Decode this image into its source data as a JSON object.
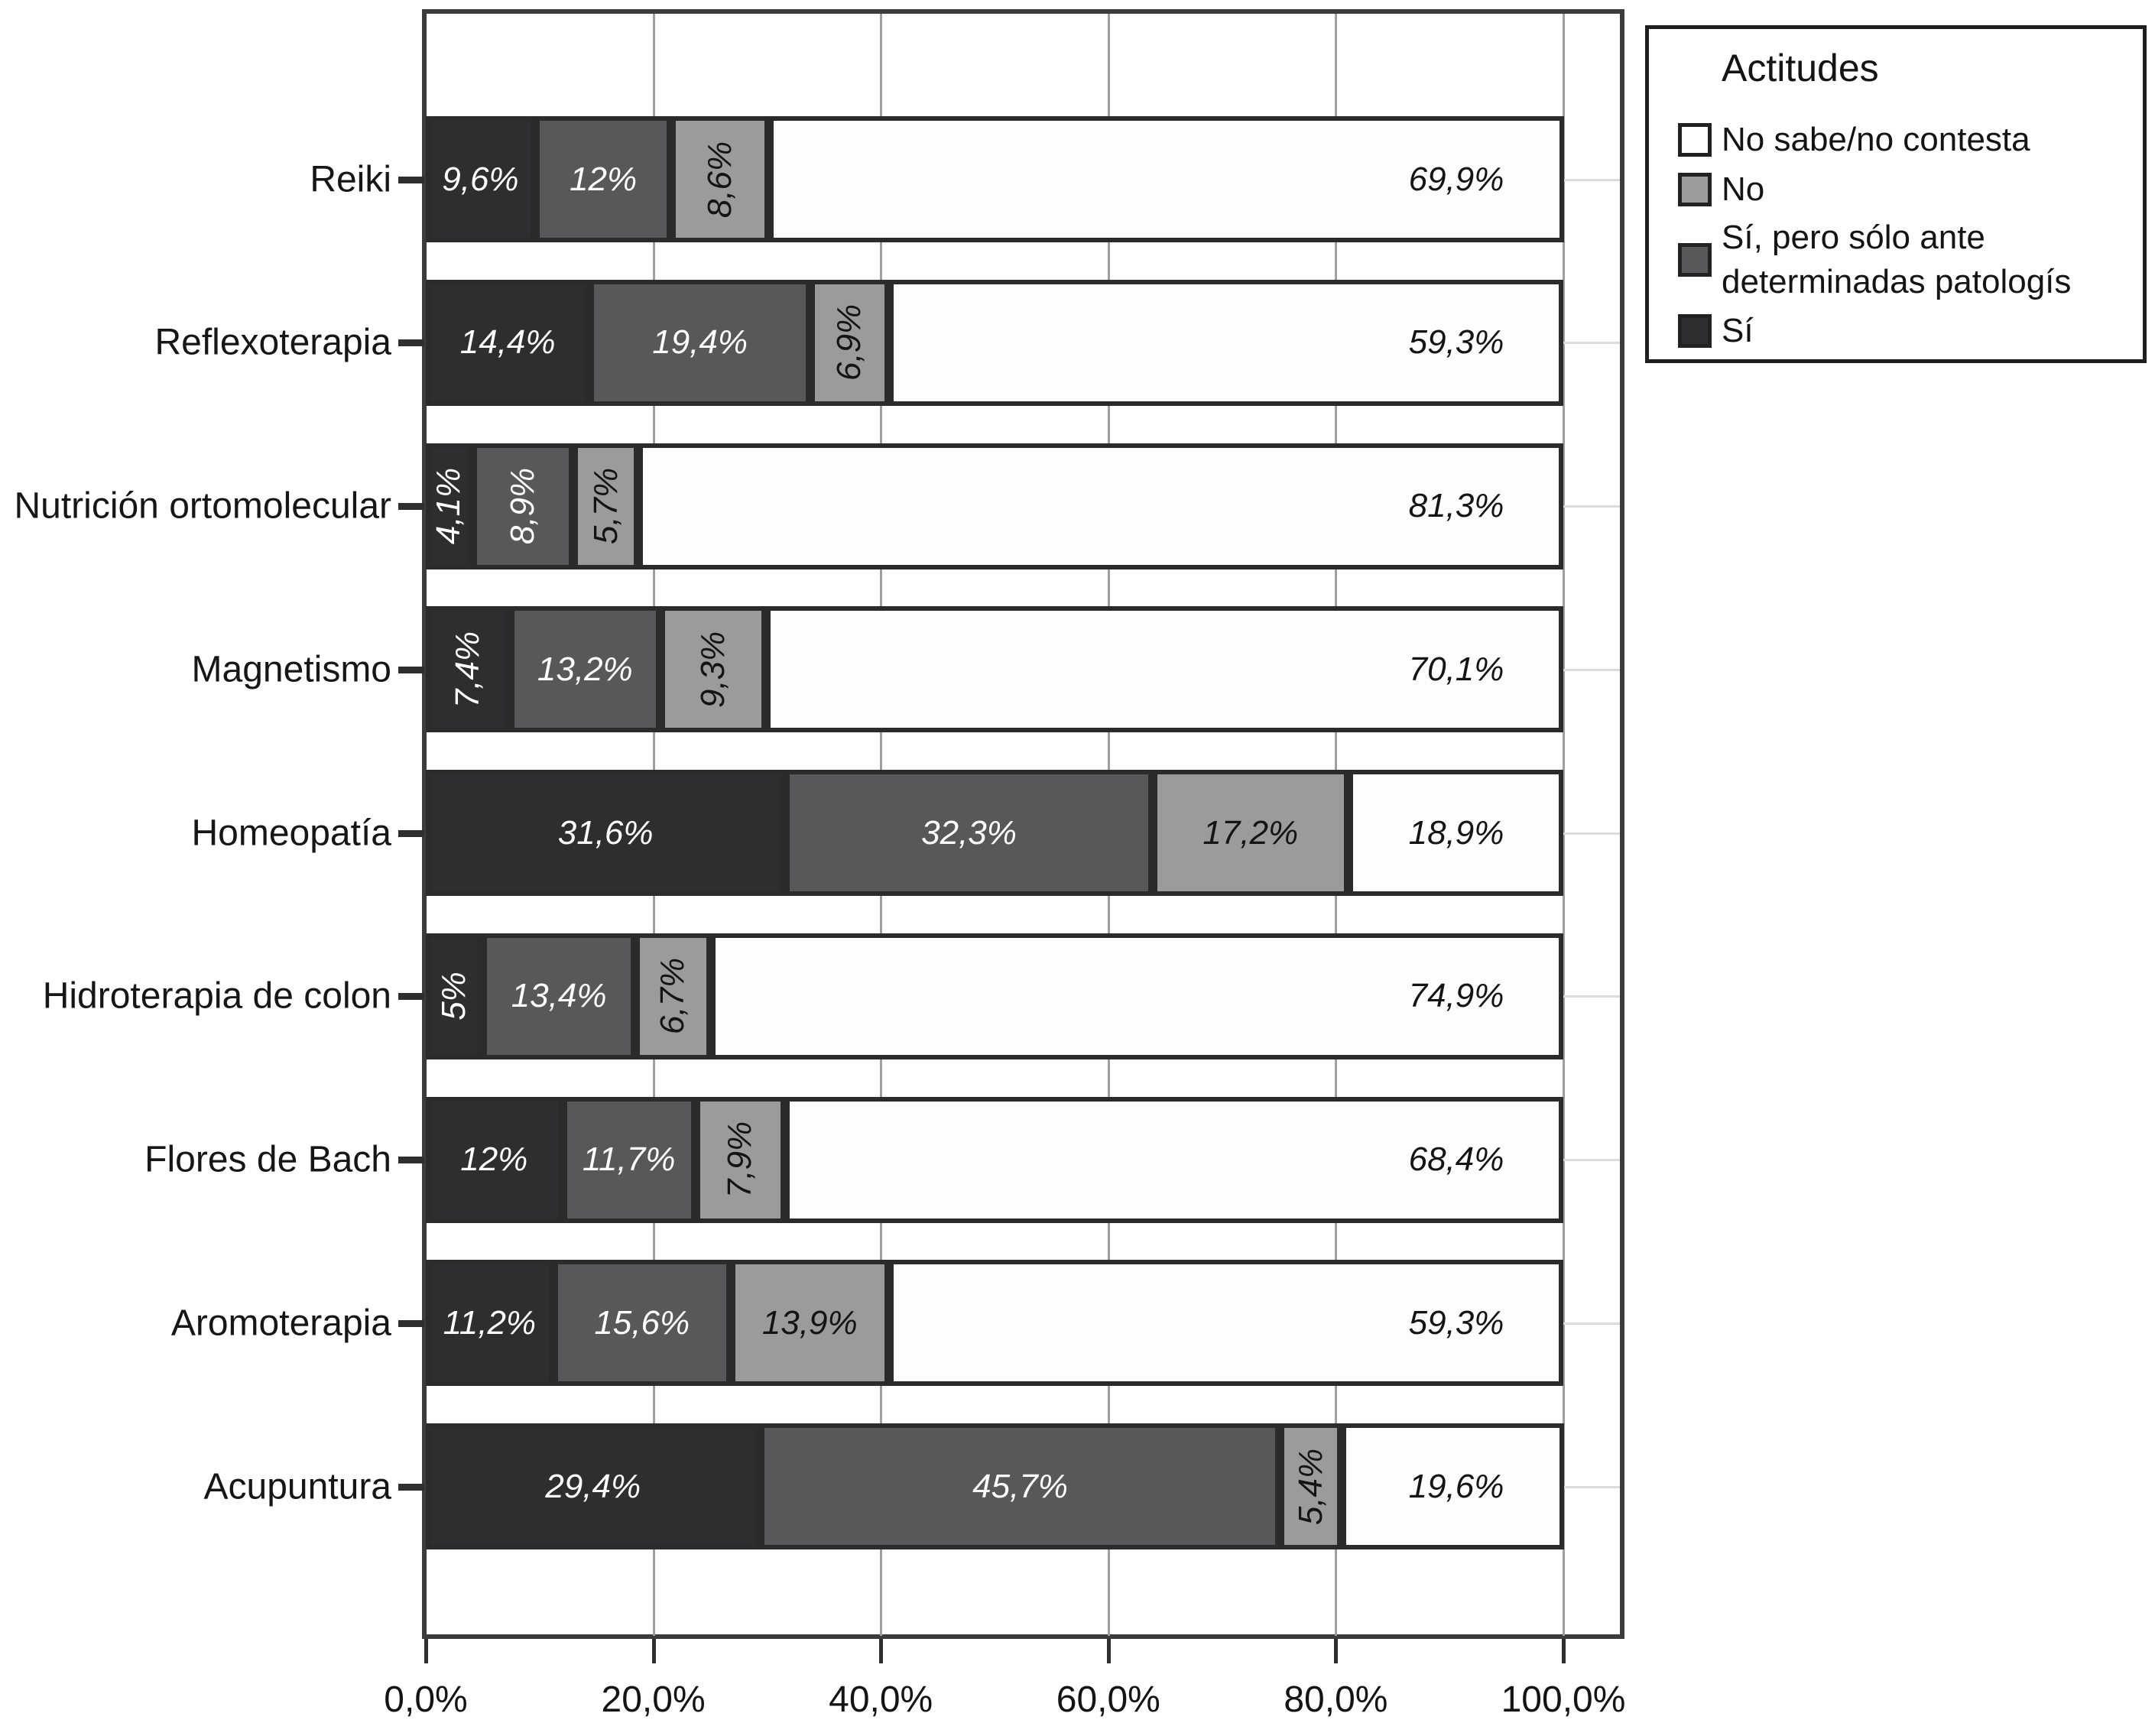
{
  "chart_data": {
    "type": "bar",
    "subtype": "horizontal-stacked",
    "categories": [
      "Reiki",
      "Reflexoterapia",
      "Nutrición ortomolecular",
      "Magnetismo",
      "Homeopatía",
      "Hidroterapia de colon",
      "Flores de Bach",
      "Aromoterapia",
      "Acupuntura"
    ],
    "series": [
      {
        "name": "Sí",
        "color": "#2e2e30",
        "text_color": "#ffffff",
        "values": [
          9.6,
          14.4,
          4.1,
          7.4,
          31.6,
          5,
          12,
          11.2,
          29.4
        ],
        "labels": [
          "9,6%",
          "14,4%",
          "4,1%",
          "7,4%",
          "31,6%",
          "5%",
          "12%",
          "11,2%",
          "29,4%"
        ]
      },
      {
        "name": "Sí, pero sólo ante determinadas patologís",
        "color": "#58585a",
        "text_color": "#ffffff",
        "values": [
          12,
          19.4,
          8.9,
          13.2,
          32.3,
          13.4,
          11.7,
          15.6,
          45.7
        ],
        "labels": [
          "12%",
          "19,4%",
          "8,9%",
          "13,2%",
          "32,3%",
          "13,4%",
          "11,7%",
          "15,6%",
          "45,7%"
        ]
      },
      {
        "name": "No",
        "color": "#9b9b9b",
        "text_color": "#141414",
        "values": [
          8.6,
          6.9,
          5.7,
          9.3,
          17.2,
          6.7,
          7.9,
          13.9,
          5.4
        ],
        "labels": [
          "8,6%",
          "6,9%",
          "5,7%",
          "9,3%",
          "17,2%",
          "6,7%",
          "7,9%",
          "13,9%",
          "5,4%"
        ]
      },
      {
        "name": "No sabe/no contesta",
        "color": "#fdfdfd",
        "text_color": "#141414",
        "values": [
          69.9,
          59.3,
          81.3,
          70.1,
          18.9,
          74.9,
          68.4,
          59.3,
          19.6
        ],
        "labels": [
          "69,9%",
          "59,3%",
          "81,3%",
          "70,1%",
          "18,9%",
          "74,9%",
          "68,4%",
          "59,3%",
          "19,6%"
        ]
      }
    ],
    "x_axis": {
      "tick_labels": [
        "0,0%",
        "20,0%",
        "40,0%",
        "60,0%",
        "80,0%",
        "100,0%"
      ],
      "tick_values": [
        0,
        20,
        40,
        60,
        80,
        100
      ],
      "range": [
        0,
        100
      ],
      "grid": true
    },
    "legend": {
      "title": "Actitudes",
      "position": "top-right",
      "entries": [
        {
          "lines": [
            "No sabe/no contesta"
          ],
          "color": "#ffffff"
        },
        {
          "lines": [
            "No"
          ],
          "color": "#9b9b9b"
        },
        {
          "lines": [
            "Sí, pero sólo ante",
            "determinadas patologís"
          ],
          "color": "#58585a"
        },
        {
          "lines": [
            "Sí"
          ],
          "color": "#2e2e30"
        }
      ]
    },
    "colors": {
      "bar_border": "#2b2b2b",
      "frame": "#3c3c3c",
      "gridline": "#9f9f9f",
      "axis_tick": "#2f2f2f",
      "text": "#141414"
    }
  }
}
